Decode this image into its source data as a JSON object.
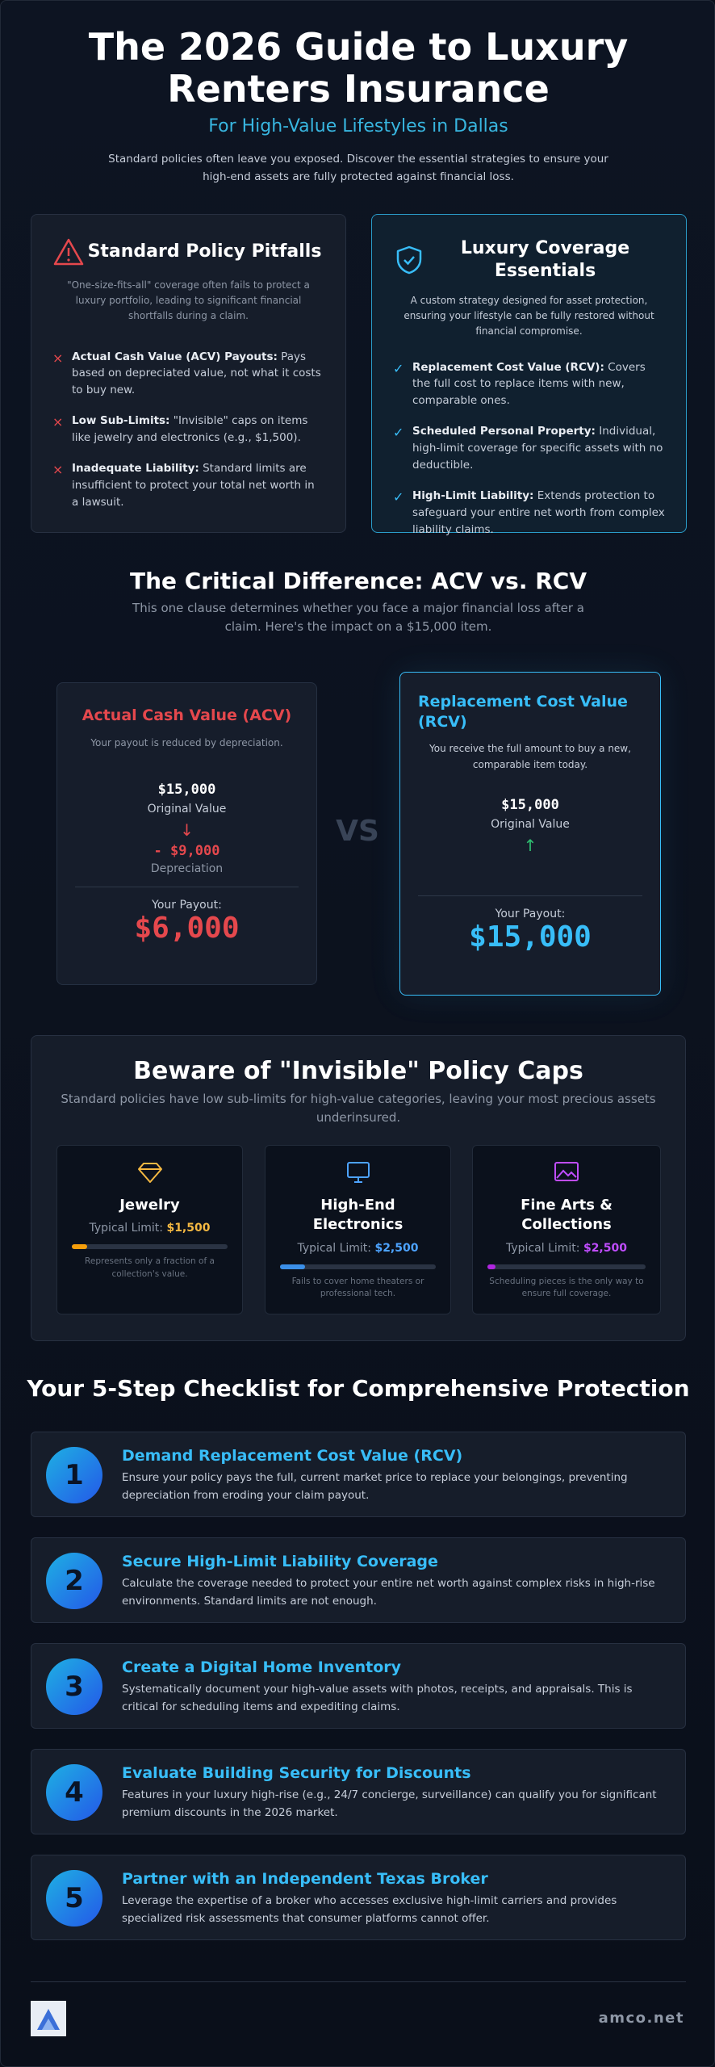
{
  "header": {
    "title": "The 2026 Guide to Luxury Renters Insurance",
    "subtitle": "For High-Value Lifestyles in Dallas",
    "intro": "Standard policies often leave you exposed. Discover the essential strategies to ensure your high-end assets are fully protected against financial loss."
  },
  "comparison": {
    "pitfalls": {
      "title": "Standard Policy Pitfalls",
      "description": "\"One-size-fits-all\" coverage often fails to protect a luxury portfolio, leading to significant financial shortfalls during a claim.",
      "items": [
        {
          "label": "Actual Cash Value (ACV) Payouts:",
          "text": "Pays based on depreciated value, not what it costs to buy new."
        },
        {
          "label": "Low Sub-Limits:",
          "text": "\"Invisible\" caps on items like jewelry and electronics (e.g., $1,500)."
        },
        {
          "label": "Inadequate Liability:",
          "text": "Standard limits are insufficient to protect your total net worth in a lawsuit."
        }
      ]
    },
    "essentials": {
      "title": "Luxury Coverage Essentials",
      "description": "A custom strategy designed for asset protection, ensuring your lifestyle can be fully restored without financial compromise.",
      "items": [
        {
          "label": "Replacement Cost Value (RCV):",
          "text": "Covers the full cost to replace items with new, comparable ones."
        },
        {
          "label": "Scheduled Personal Property:",
          "text": "Individual, high-limit coverage for specific assets with no deductible."
        },
        {
          "label": "High-Limit Liability:",
          "text": "Extends protection to safeguard your entire net worth from complex liability claims."
        }
      ]
    }
  },
  "difference": {
    "title": "The Critical Difference: ACV vs. RCV",
    "subtitle": "This one clause determines whether you face a major financial loss after a claim. Here's the impact on a $15,000 item.",
    "vs": "VS",
    "acv": {
      "title": "Actual Cash Value (ACV)",
      "note": "Your payout is reduced by depreciation.",
      "original_amount": "$15,000",
      "original_label": "Original Value",
      "depreciation_amount": "- $9,000",
      "depreciation_label": "Depreciation",
      "payout_label": "Your Payout:",
      "payout_amount": "$6,000"
    },
    "rcv": {
      "title": "Replacement Cost Value (RCV)",
      "note": "You receive the full amount to buy a new, comparable item today.",
      "original_amount": "$15,000",
      "original_label": "Original Value",
      "payout_label": "Your Payout:",
      "payout_amount": "$15,000"
    }
  },
  "caps": {
    "title": "Beware of \"Invisible\" Policy Caps",
    "subtitle": "Standard policies have low sub-limits for high-value categories, leaving your most precious assets underinsured.",
    "items": [
      {
        "name": "Jewelry",
        "limit_label": "Typical Limit:",
        "limit": "$1,500",
        "note": "Represents only a fraction of a collection's value."
      },
      {
        "name": "High-End Electronics",
        "limit_label": "Typical Limit:",
        "limit": "$2,500",
        "note": "Fails to cover home theaters or professional tech."
      },
      {
        "name": "Fine Arts & Collections",
        "limit_label": "Typical Limit:",
        "limit": "$2,500",
        "note": "Scheduling pieces is the only way to ensure full coverage."
      }
    ]
  },
  "checklist": {
    "title": "Your 5-Step Checklist for Comprehensive Protection",
    "steps": [
      {
        "number": "1",
        "title": "Demand Replacement Cost Value (RCV)",
        "text": "Ensure your policy pays the full, current market price to replace your belongings, preventing depreciation from eroding your claim payout."
      },
      {
        "number": "2",
        "title": "Secure High-Limit Liability Coverage",
        "text": "Calculate the coverage needed to protect your entire net worth against complex risks in high-rise environments. Standard limits are not enough."
      },
      {
        "number": "3",
        "title": "Create a Digital Home Inventory",
        "text": "Systematically document your high-value assets with photos, receipts, and appraisals. This is critical for scheduling items and expediting claims."
      },
      {
        "number": "4",
        "title": "Evaluate Building Security for Discounts",
        "text": "Features in your luxury high-rise (e.g., 24/7 concierge, surveillance) can qualify you for significant premium discounts in the 2026 market."
      },
      {
        "number": "5",
        "title": "Partner with an Independent Texas Broker",
        "text": "Leverage the expertise of a broker who accesses exclusive high-limit carriers and provides specialized risk assessments that consumer platforms cannot offer."
      }
    ]
  },
  "footer": {
    "brand": "amco.net"
  }
}
